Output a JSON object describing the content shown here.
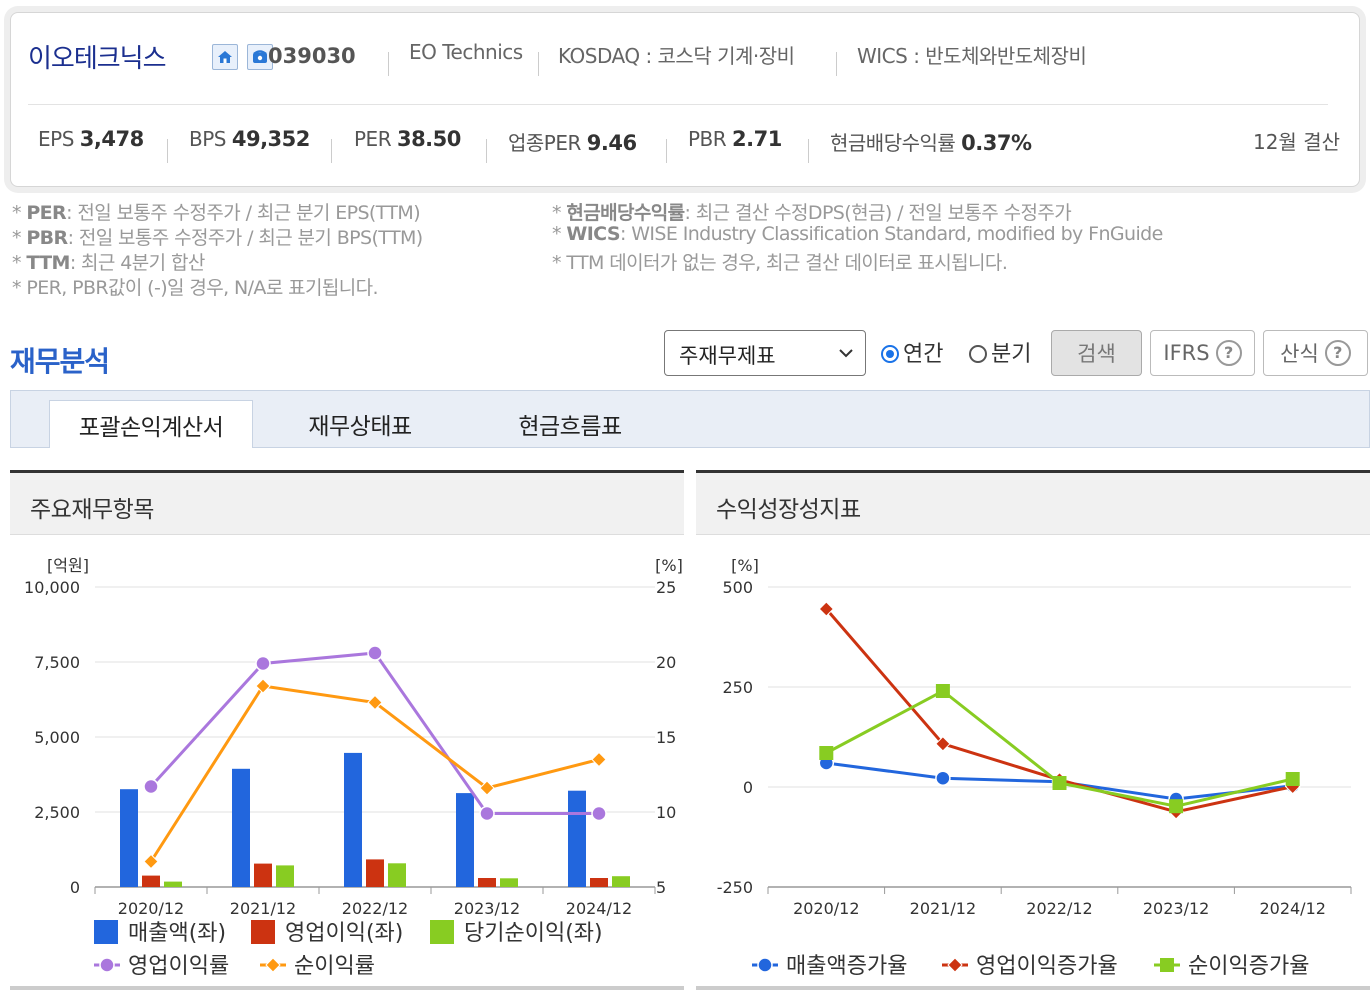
{
  "header": {
    "company_name": "이오테크닉스",
    "code": "039030",
    "english_name": "EO Technics",
    "market": "KOSDAQ : 코스닥 기계·장비",
    "wics": "WICS : 반도체와반도체장비",
    "stats": [
      {
        "label": "EPS",
        "value": "3,478"
      },
      {
        "label": "BPS",
        "value": "49,352"
      },
      {
        "label": "PER",
        "value": "38.50"
      },
      {
        "label": "업종PER",
        "value": "9.46"
      },
      {
        "label": "PBR",
        "value": "2.71"
      },
      {
        "label": "현금배당수익률",
        "value": "0.37%"
      }
    ],
    "settlement": "12월 결산"
  },
  "notes": {
    "left": [
      {
        "key": "PER",
        "text": ": 전일 보통주 수정주가 / 최근 분기 EPS(TTM)"
      },
      {
        "key": "PBR",
        "text": ": 전일 보통주 수정주가 / 최근 분기 BPS(TTM)"
      },
      {
        "key": "TTM",
        "text": ": 최근 4분기 합산"
      },
      {
        "key": "",
        "text": "PER, PBR값이 (-)일 경우, N/A로 표기됩니다."
      }
    ],
    "right": [
      {
        "key": "현금배당수익률",
        "text": ": 최근 결산 수정DPS(현금) / 전일 보통주 수정주가"
      },
      {
        "key": "WICS",
        "text": ": WISE Industry Classification Standard, modified by FnGuide"
      },
      {
        "key": "",
        "text": "TTM 데이터가 없는 경우, 최근 결산 데이터로 표시됩니다."
      }
    ]
  },
  "section": {
    "title": "재무분석",
    "select_value": "주재무제표",
    "radio_annual": "연간",
    "radio_quarter": "분기",
    "search_btn": "검색",
    "ifrs_btn": "IFRS",
    "formula_btn": "산식"
  },
  "tabs": [
    "포괄손익계산서",
    "재무상태표",
    "현금흐름표"
  ],
  "panels": {
    "left_title": "주요재무항목",
    "right_title": "수익성장성지표"
  },
  "colors": {
    "sales": "#2266dd",
    "op_income": "#cc3311",
    "net_income": "#88cc22",
    "op_margin": "#aa77dd",
    "net_margin": "#ff9911",
    "title_blue": "#2a62c9"
  },
  "chart_data": [
    {
      "type": "bar",
      "categories": [
        "2020/12",
        "2021/12",
        "2022/12",
        "2023/12",
        "2024/12"
      ],
      "y_left_unit": "[억원]",
      "y_right_unit": "[%]",
      "ylim_left": [
        0,
        10000
      ],
      "ylim_right": [
        5,
        25
      ],
      "yticks_left": [
        "0",
        "2,500",
        "5,000",
        "7,500",
        "10,000"
      ],
      "yticks_right": [
        "5",
        "10",
        "15",
        "20",
        "25"
      ],
      "series": [
        {
          "name": "매출액(좌)",
          "type": "bar",
          "axis": "left",
          "values": [
            3260,
            3940,
            4470,
            3130,
            3210
          ]
        },
        {
          "name": "영업이익(좌)",
          "type": "bar",
          "axis": "left",
          "values": [
            380,
            780,
            920,
            300,
            300
          ]
        },
        {
          "name": "당기순이익(좌)",
          "type": "bar",
          "axis": "left",
          "values": [
            180,
            720,
            790,
            290,
            360
          ]
        },
        {
          "name": "영업이익률",
          "type": "line",
          "axis": "right",
          "values": [
            11.7,
            19.9,
            20.6,
            9.9,
            9.9
          ]
        },
        {
          "name": "순이익률",
          "type": "line",
          "axis": "right",
          "values": [
            6.7,
            18.4,
            17.3,
            11.6,
            13.5
          ]
        }
      ],
      "grid": true,
      "legend": "bottom"
    },
    {
      "type": "line",
      "categories": [
        "2020/12",
        "2021/12",
        "2022/12",
        "2023/12",
        "2024/12"
      ],
      "y_unit": "[%]",
      "ylim": [
        -250,
        500
      ],
      "yticks": [
        "-250",
        "0",
        "250",
        "500"
      ],
      "series": [
        {
          "name": "매출액증가율",
          "values": [
            60,
            22,
            13,
            -30,
            3
          ]
        },
        {
          "name": "영업이익증가율",
          "values": [
            445,
            108,
            18,
            -62,
            1
          ]
        },
        {
          "name": "순이익증가율",
          "values": [
            85,
            240,
            10,
            -48,
            20
          ]
        }
      ],
      "grid": true,
      "legend": "bottom"
    }
  ]
}
